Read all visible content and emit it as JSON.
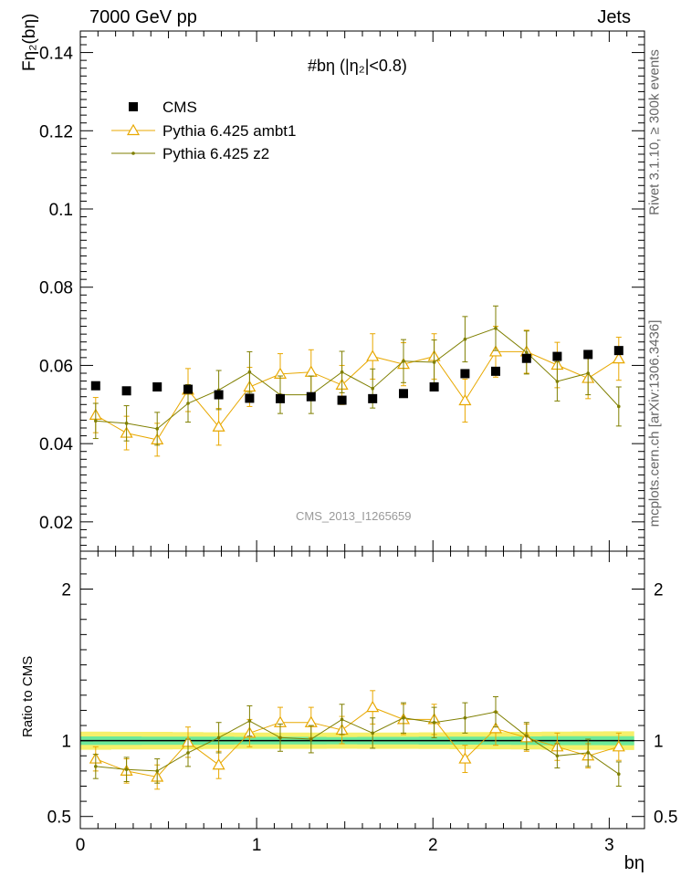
{
  "header": {
    "energy_label": "7000 GeV pp",
    "category_label": "Jets"
  },
  "side_labels": {
    "rivet": "Rivet 3.1.10, ≥ 300k events",
    "mcplots": "mcplots.cern.ch [arXiv:1306.3436]"
  },
  "chart_data": [
    {
      "type": "scatter",
      "title": "#bη (|η₂|<0.8)",
      "ylabel": "Fη₂(bη)",
      "xlabel": "bη",
      "watermark": "CMS_2013_I1265659",
      "xlim": [
        0,
        3.2
      ],
      "ylim": [
        0.0125,
        0.1455
      ],
      "yticks": [
        0.02,
        0.04,
        0.06,
        0.08,
        0.1,
        0.12,
        0.14
      ],
      "ytick_labels": [
        "0.02",
        "0.04",
        "0.06",
        "0.08",
        "0.1",
        "0.12",
        "0.14"
      ],
      "legend_position": "top-left",
      "x": [
        0.087,
        0.262,
        0.436,
        0.611,
        0.785,
        0.96,
        1.134,
        1.309,
        1.484,
        1.658,
        1.833,
        2.007,
        2.182,
        2.356,
        2.531,
        2.705,
        2.88,
        3.054
      ],
      "series": [
        {
          "name": "CMS",
          "color": "#000000",
          "marker": "square",
          "values": [
            0.0548,
            0.0535,
            0.0545,
            0.0539,
            0.0525,
            0.0516,
            0.0515,
            0.052,
            0.0511,
            0.0515,
            0.0528,
            0.0545,
            0.0579,
            0.0585,
            0.0618,
            0.0623,
            0.0628,
            0.0638
          ],
          "errors": [
            0.0009,
            0.0009,
            0.0009,
            0.0009,
            0.0009,
            0.0009,
            0.0009,
            0.0009,
            0.0009,
            0.0009,
            0.0009,
            0.0009,
            0.001,
            0.001,
            0.001,
            0.001,
            0.0011,
            0.0011
          ]
        },
        {
          "name": "Pythia 6.425 ambt1",
          "color": "#e8a800",
          "marker": "triangle",
          "values": [
            0.0473,
            0.0427,
            0.041,
            0.0537,
            0.0443,
            0.0545,
            0.0578,
            0.0583,
            0.055,
            0.0623,
            0.0603,
            0.0623,
            0.051,
            0.0635,
            0.0635,
            0.0601,
            0.0567,
            0.0617
          ],
          "errors": [
            0.0045,
            0.0043,
            0.0042,
            0.0055,
            0.0047,
            0.005,
            0.0052,
            0.0057,
            0.005,
            0.0058,
            0.0055,
            0.0058,
            0.0055,
            0.0065,
            0.0055,
            0.0058,
            0.0052,
            0.0055
          ]
        },
        {
          "name": "Pythia 6.425 z2",
          "color": "#7f7f00",
          "marker": "dot",
          "values": [
            0.0458,
            0.0452,
            0.0438,
            0.0503,
            0.0537,
            0.0583,
            0.0525,
            0.0525,
            0.0583,
            0.0541,
            0.0611,
            0.0608,
            0.0667,
            0.0695,
            0.0633,
            0.0559,
            0.058,
            0.0495
          ],
          "errors": [
            0.0045,
            0.0045,
            0.0042,
            0.0048,
            0.005,
            0.0052,
            0.0048,
            0.0048,
            0.0053,
            0.005,
            0.0055,
            0.0057,
            0.0058,
            0.0057,
            0.0055,
            0.005,
            0.0055,
            0.005
          ]
        }
      ]
    },
    {
      "type": "scatter",
      "ylabel": "Ratio to CMS",
      "xlabel": "bη",
      "xlim": [
        0,
        3.2
      ],
      "ylim": [
        0.42,
        2.25
      ],
      "yticks": [
        0.5,
        1,
        2
      ],
      "ytick_labels": [
        "0.5",
        "1",
        "2"
      ],
      "xticks": [
        0,
        1,
        2,
        3
      ],
      "xtick_labels": [
        "0",
        "1",
        "2",
        "3"
      ],
      "band": {
        "name": "CMS uncertainty",
        "inner_half_width": [
          0.028,
          0.028,
          0.027,
          0.027,
          0.026,
          0.025,
          0.025,
          0.025,
          0.024,
          0.025,
          0.025,
          0.026,
          0.026,
          0.027,
          0.028,
          0.029,
          0.029,
          0.03
        ],
        "outer_half_width": [
          0.06,
          0.058,
          0.058,
          0.057,
          0.055,
          0.054,
          0.054,
          0.054,
          0.053,
          0.054,
          0.054,
          0.055,
          0.056,
          0.057,
          0.058,
          0.06,
          0.061,
          0.062
        ],
        "inner_color": "#6ce99a",
        "outer_color": "#f5f06a"
      },
      "series": [
        {
          "name": "Pythia 6.425 ambt1",
          "color": "#e8a800",
          "marker": "triangle",
          "values": [
            0.88,
            0.8,
            0.76,
            0.99,
            0.84,
            1.05,
            1.12,
            1.12,
            1.07,
            1.22,
            1.14,
            1.14,
            0.88,
            1.08,
            1.02,
            0.96,
            0.9,
            0.96
          ],
          "errors": [
            0.08,
            0.08,
            0.08,
            0.1,
            0.09,
            0.09,
            0.1,
            0.1,
            0.09,
            0.11,
            0.1,
            0.1,
            0.09,
            0.11,
            0.09,
            0.09,
            0.08,
            0.09
          ]
        },
        {
          "name": "Pythia 6.425 z2",
          "color": "#7f7f00",
          "marker": "dot",
          "values": [
            0.83,
            0.81,
            0.8,
            0.92,
            1.02,
            1.13,
            1.02,
            1.01,
            1.14,
            1.05,
            1.15,
            1.12,
            1.15,
            1.19,
            1.03,
            0.9,
            0.92,
            0.78
          ],
          "errors": [
            0.08,
            0.08,
            0.08,
            0.09,
            0.1,
            0.1,
            0.09,
            0.09,
            0.1,
            0.1,
            0.1,
            0.1,
            0.1,
            0.1,
            0.09,
            0.08,
            0.09,
            0.08
          ]
        }
      ]
    }
  ]
}
